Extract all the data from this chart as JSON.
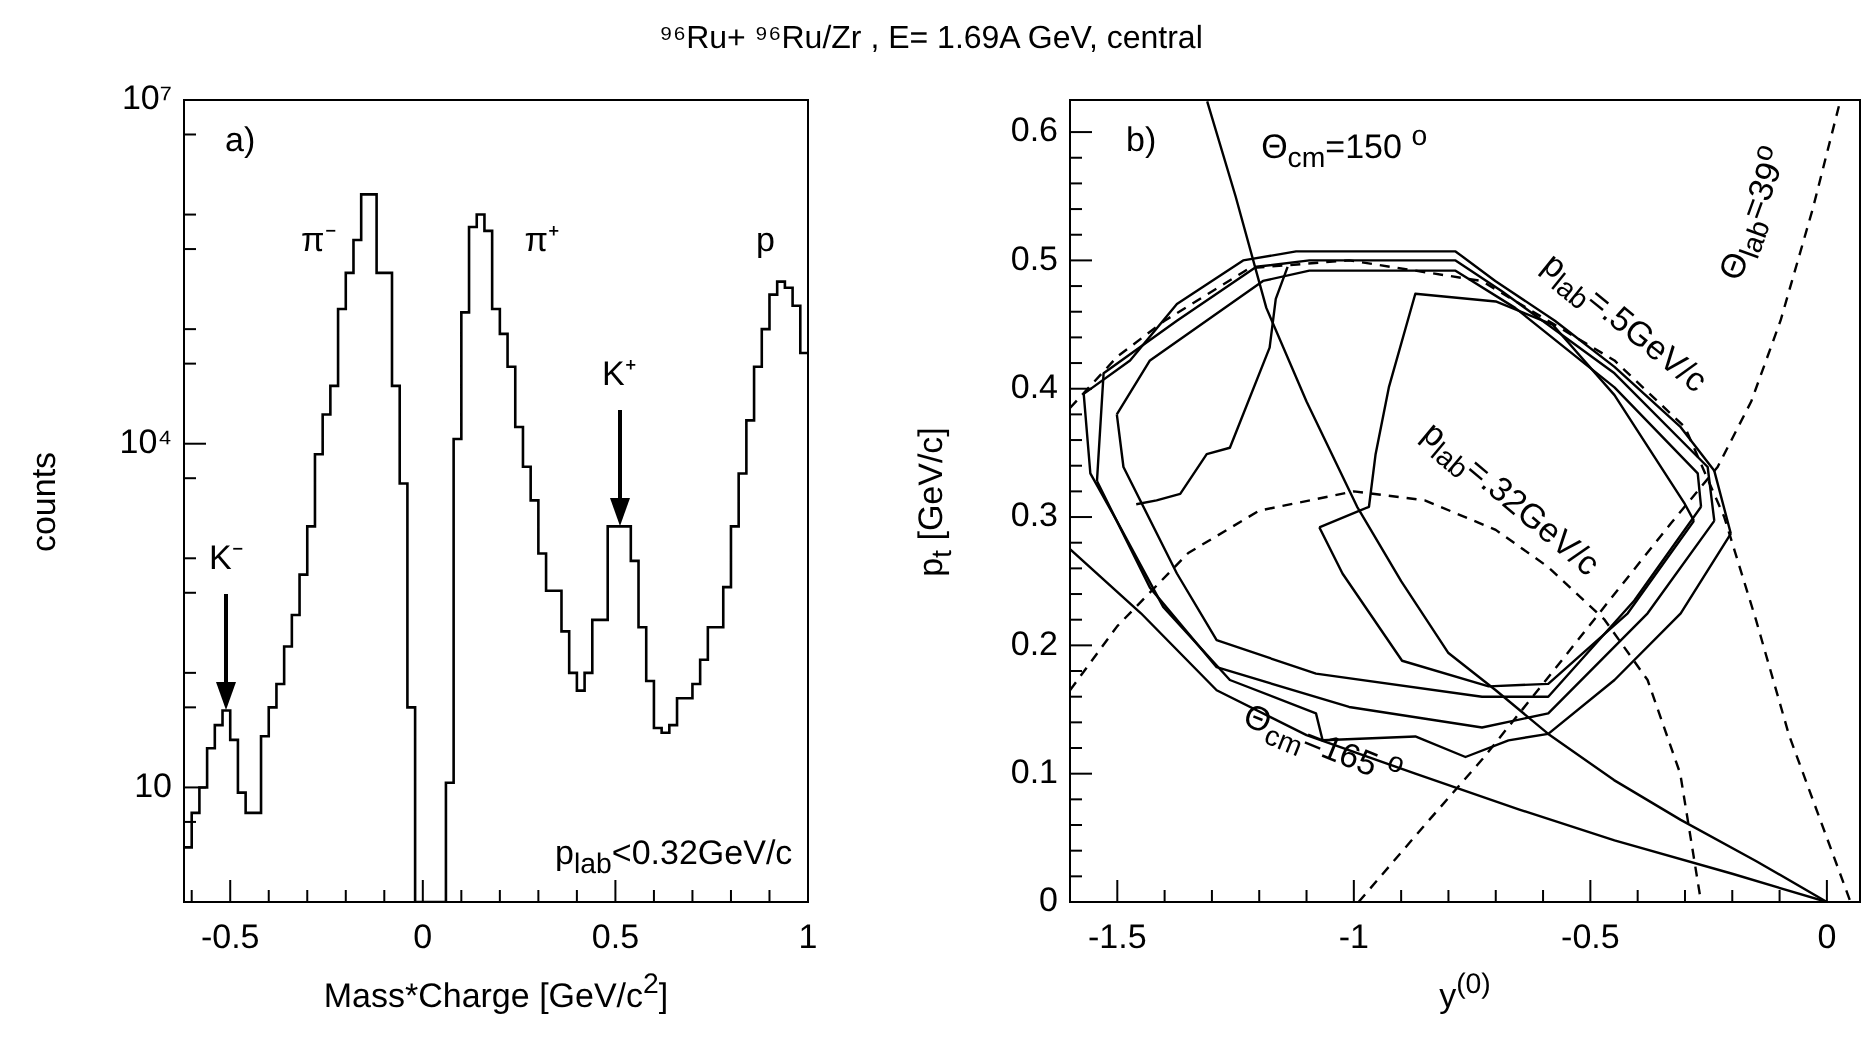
{
  "chart_data": [
    {
      "type": "histogram",
      "title": "⁹⁶Ru+ ⁹⁶Ru/Zr , E= 1.69A GeV,  central",
      "xlabel": "Mass*Charge [GeV/c$^{2}$]",
      "ylabel": "counts",
      "color": "#000000",
      "log": "y",
      "bins": [
        -0.62,
        -0.6,
        -0.58,
        -0.56,
        -0.54,
        -0.52,
        -0.5,
        -0.48,
        -0.46,
        -0.44,
        -0.42,
        -0.4,
        -0.38,
        -0.36,
        -0.34,
        -0.32,
        -0.3,
        -0.28,
        -0.26,
        -0.24,
        -0.22,
        -0.2,
        -0.18,
        -0.16,
        -0.14,
        -0.12,
        -0.1,
        -0.08,
        -0.06,
        -0.04,
        -0.02,
        0,
        0.02,
        0.04,
        0.06,
        0.08,
        0.1,
        0.12,
        0.14,
        0.16,
        0.18,
        0.2,
        0.22,
        0.24,
        0.26,
        0.28,
        0.3,
        0.32,
        0.34,
        0.36,
        0.38,
        0.4,
        0.42,
        0.44,
        0.46,
        0.48,
        0.5,
        0.52,
        0.54,
        0.56,
        0.58,
        0.6,
        0.62,
        0.64,
        0.66,
        0.68,
        0.7,
        0.72,
        0.74,
        0.76,
        0.78,
        0.8,
        0.82,
        0.84,
        0.86,
        0.88,
        0.9,
        0.92,
        0.94,
        0.96,
        0.98,
        1.0
      ],
      "values": [
        3,
        6,
        10,
        22,
        35,
        47,
        26,
        9,
        6,
        6,
        28,
        50,
        80,
        170,
        320,
        720,
        1900,
        8100,
        18000,
        32000,
        150000,
        310000,
        600000,
        1500000,
        1500000,
        310000,
        310000,
        32000,
        4500,
        50,
        1,
        1,
        1,
        1,
        11,
        11000,
        140000,
        780000,
        1000000,
        720000,
        150000,
        91000,
        47000,
        14000,
        6300,
        3200,
        1100,
        520,
        520,
        230,
        100,
        70,
        100,
        290,
        290,
        1900,
        1900,
        1900,
        950,
        250,
        85,
        33,
        30,
        35,
        60,
        60,
        80,
        130,
        250,
        250,
        560,
        1900,
        5500,
        16000,
        47000,
        100000,
        200000,
        260000,
        230000,
        160000,
        62000
      ],
      "xlim": [
        -0.62,
        1.0
      ],
      "xticks": [
        {
          "value": -0.6,
          "label": null
        },
        -0.5,
        {
          "value": -0.4,
          "label": null
        },
        {
          "value": -0.3,
          "label": null
        },
        {
          "value": -0.2,
          "label": null
        },
        {
          "value": -0.1,
          "label": null
        },
        0,
        {
          "value": 0.1,
          "label": null
        },
        {
          "value": 0.2,
          "label": null
        },
        {
          "value": 0.3,
          "label": null
        },
        {
          "value": 0.4,
          "label": null
        },
        0.5,
        {
          "value": 0.6,
          "label": null
        },
        {
          "value": 0.7,
          "label": null
        },
        {
          "value": 0.8,
          "label": null
        },
        {
          "value": 0.9,
          "label": null
        },
        1
      ],
      "ylim": [
        1,
        10000000
      ],
      "yticks": [
        {
          "value": 5,
          "label": null
        },
        10,
        {
          "value": 50,
          "label": null
        },
        {
          "value": 100,
          "label": null
        },
        {
          "value": 500,
          "label": null
        },
        {
          "value": 1000,
          "label": null
        },
        {
          "value": 5000,
          "label": null
        },
        {
          "value": 10000,
          "label": "10⁴"
        },
        {
          "value": 50000,
          "label": null
        },
        {
          "value": 100000,
          "label": null
        },
        {
          "value": 500000,
          "label": null
        },
        {
          "value": 1000000,
          "label": null
        },
        {
          "value": 5000000,
          "label": null
        },
        {
          "value": 10000000,
          "label": "10⁷"
        }
      ],
      "annotations": [
        "a)",
        "π⁻",
        "π⁺",
        "p",
        {
          "text": "K⁺",
          "x": 0.51,
          "y": 1900
        },
        {
          "text": "K⁻",
          "x": -0.51,
          "y": 47
        },
        "p$_{lab}$<0.32GeV/c"
      ]
    },
    {
      "type": "line",
      "xlabel": "y$^{(0)}$",
      "ylabel": "p$_{t}$ [GeV/c]",
      "xlim": [
        -1.6,
        0.07
      ],
      "xticks": [
        -1.5,
        {
          "value": -1.4,
          "label": null
        },
        {
          "value": -1.3,
          "label": null
        },
        {
          "value": -1.2,
          "label": null
        },
        {
          "value": -1.1,
          "label": null
        },
        -1,
        {
          "value": -0.9,
          "label": null
        },
        {
          "value": -0.8,
          "label": null
        },
        {
          "value": -0.7,
          "label": null
        },
        {
          "value": -0.6,
          "label": null
        },
        -0.5,
        {
          "value": -0.4,
          "label": null
        },
        {
          "value": -0.3,
          "label": null
        },
        {
          "value": -0.2,
          "label": null
        },
        {
          "value": -0.1,
          "label": null
        },
        0
      ],
      "ylim": [
        0,
        0.625
      ],
      "yticks": [
        0,
        {
          "value": 0.02,
          "label": null
        },
        {
          "value": 0.04,
          "label": null
        },
        {
          "value": 0.06,
          "label": null
        },
        {
          "value": 0.08,
          "label": null
        },
        0.1,
        {
          "value": 0.12,
          "label": null
        },
        {
          "value": 0.14,
          "label": null
        },
        {
          "value": 0.16,
          "label": null
        },
        {
          "value": 0.18,
          "label": null
        },
        0.2,
        {
          "value": 0.22,
          "label": null
        },
        {
          "value": 0.24,
          "label": null
        },
        {
          "value": 0.26,
          "label": null
        },
        {
          "value": 0.28,
          "label": null
        },
        0.3,
        {
          "value": 0.32,
          "label": null
        },
        {
          "value": 0.34,
          "label": null
        },
        {
          "value": 0.36,
          "label": null
        },
        {
          "value": 0.38,
          "label": null
        },
        0.4,
        {
          "value": 0.42,
          "label": null
        },
        {
          "value": 0.44,
          "label": null
        },
        {
          "value": 0.46,
          "label": null
        },
        {
          "value": 0.48,
          "label": null
        },
        0.5,
        {
          "value": 0.52,
          "label": null
        },
        {
          "value": 0.54,
          "label": null
        },
        {
          "value": 0.56,
          "label": null
        },
        {
          "value": 0.58,
          "label": null
        },
        0.6
      ],
      "marker": "none",
      "series": [
        {
          "color": "#000000",
          "line_style": "solid",
          "x": [
            -1.571,
            -1.473,
            -1.374,
            -1.234,
            -1.122,
            -0.785,
            -0.701,
            -0.575,
            -0.449,
            -0.309,
            -0.238,
            -0.203
          ],
          "values": [
            0.396,
            0.422,
            0.466,
            0.5,
            0.507,
            0.507,
            0.484,
            0.453,
            0.417,
            0.37,
            0.336,
            0.287
          ]
        },
        {
          "color": "#000000",
          "line_style": "solid",
          "x": [
            -1.571,
            -1.557,
            -1.501,
            -1.403,
            -1.262,
            -1.08,
            -1.066,
            -0.87,
            -0.764,
            -0.673,
            -0.589,
            -0.449,
            -0.309,
            -0.203
          ],
          "values": [
            0.396,
            0.334,
            0.297,
            0.23,
            0.173,
            0.147,
            0.126,
            0.129,
            0.113,
            0.126,
            0.131,
            0.173,
            0.225,
            0.287
          ]
        },
        {
          "color": "#000000",
          "line_style": "solid",
          "x": [
            -1.543,
            -1.529,
            -1.374,
            -1.206,
            -1.094,
            -0.785,
            -0.687,
            -0.449,
            -0.252,
            -0.238
          ],
          "values": [
            0.328,
            0.412,
            0.453,
            0.495,
            0.5,
            0.5,
            0.476,
            0.412,
            0.339,
            0.297
          ]
        },
        {
          "color": "#000000",
          "line_style": "solid",
          "x": [
            -1.543,
            -1.431,
            -1.29,
            -1.01,
            -0.729,
            -0.589,
            -0.379,
            -0.238
          ],
          "values": [
            0.328,
            0.245,
            0.183,
            0.152,
            0.136,
            0.147,
            0.225,
            0.297
          ]
        },
        {
          "color": "#000000",
          "line_style": "solid",
          "x": [
            -1.501,
            -1.431,
            -1.192,
            -1.094,
            -0.785,
            -0.659,
            -0.449,
            -0.273,
            -0.266
          ],
          "values": [
            0.38,
            0.422,
            0.484,
            0.492,
            0.492,
            0.463,
            0.401,
            0.334,
            0.308
          ]
        },
        {
          "color": "#000000",
          "line_style": "solid",
          "x": [
            -1.501,
            -1.487,
            -1.374,
            -1.29,
            -1.08,
            -0.729,
            -0.589,
            -0.407,
            -0.266
          ],
          "values": [
            0.38,
            0.339,
            0.256,
            0.204,
            0.178,
            0.16,
            0.16,
            0.235,
            0.308
          ]
        },
        {
          "color": "#000000",
          "line_style": "solid",
          "x": [
            -1.073,
            -0.968,
            -0.954,
            -0.926,
            -0.87,
            -0.7,
            -0.58,
            -0.449,
            -0.3,
            -0.281
          ],
          "values": [
            0.292,
            0.308,
            0.349,
            0.401,
            0.474,
            0.468,
            0.45,
            0.395,
            0.31,
            0.297
          ]
        },
        {
          "color": "#000000",
          "line_style": "solid",
          "x": [
            -1.073,
            -1.024,
            -0.898,
            -0.715,
            -0.589,
            -0.421,
            -0.281
          ],
          "values": [
            0.292,
            0.256,
            0.188,
            0.168,
            0.17,
            0.225,
            0.297
          ]
        },
        {
          "color": "#000000",
          "line_style": "solid",
          "x": [
            -1.46,
            -1.417,
            -1.367,
            -1.311,
            -1.262,
            -1.178,
            -1.165,
            -1.14
          ],
          "values": [
            0.31,
            0.313,
            0.318,
            0.349,
            0.354,
            0.432,
            0.47,
            0.495
          ]
        },
        {
          "color": "#000000",
          "line_style": "solid",
          "x": [
            -1.31,
            -1.25,
            -1.185,
            -1.1,
            -0.993,
            -0.9,
            -0.8,
            -0.7,
            -0.589,
            -0.45,
            -0.309,
            -0.15,
            0
          ],
          "values": [
            0.624,
            0.55,
            0.463,
            0.39,
            0.308,
            0.25,
            0.194,
            0.165,
            0.131,
            0.095,
            0.064,
            0.032,
            0
          ]
        },
        {
          "color": "#000000",
          "line_style": "solid",
          "x": [
            -1.6,
            -1.45,
            -1.29,
            -1.1,
            -0.87,
            -0.65,
            -0.449,
            -0.2,
            0
          ],
          "values": [
            0.275,
            0.225,
            0.165,
            0.13,
            0.1,
            0.072,
            0.048,
            0.022,
            0
          ]
        },
        {
          "color": "#000000",
          "line_style": "dashed",
          "x": [
            -1.6,
            -1.5,
            -1.35,
            -1.2,
            -1.0,
            -0.85,
            -0.7,
            -0.589,
            -0.47,
            -0.379,
            -0.31,
            -0.266
          ],
          "values": [
            0.165,
            0.215,
            0.272,
            0.305,
            0.32,
            0.313,
            0.29,
            0.261,
            0.22,
            0.173,
            0.1,
            0
          ]
        },
        {
          "color": "#000000",
          "line_style": "dashed",
          "x": [
            -1.6,
            -1.5,
            -1.4,
            -1.22,
            -1.01,
            -0.73,
            -0.449,
            -0.3,
            -0.217,
            -0.15,
            -0.08,
            0.05
          ],
          "values": [
            0.385,
            0.425,
            0.453,
            0.494,
            0.5,
            0.484,
            0.422,
            0.37,
            0.3,
            0.22,
            0.13,
            0
          ]
        },
        {
          "color": "#000000",
          "line_style": "dashed",
          "x": [
            -0.99,
            -0.85,
            -0.729,
            -0.6,
            -0.449,
            -0.33,
            -0.231,
            -0.16,
            -0.098,
            -0.03,
            0.028
          ],
          "values": [
            0,
            0.06,
            0.111,
            0.17,
            0.24,
            0.295,
            0.339,
            0.39,
            0.453,
            0.54,
            0.624
          ]
        }
      ],
      "annotations": [
        "b)",
        "Θ$_{cm}$=150 $^{o}$",
        "p$_{lab}$=.5GeV/c",
        "p$_{lab}$=.32GeV/c",
        "Θ$_{lab}$=39$^{o}$",
        "Θ$_{cm}$=165 $^{o}$"
      ]
    }
  ]
}
